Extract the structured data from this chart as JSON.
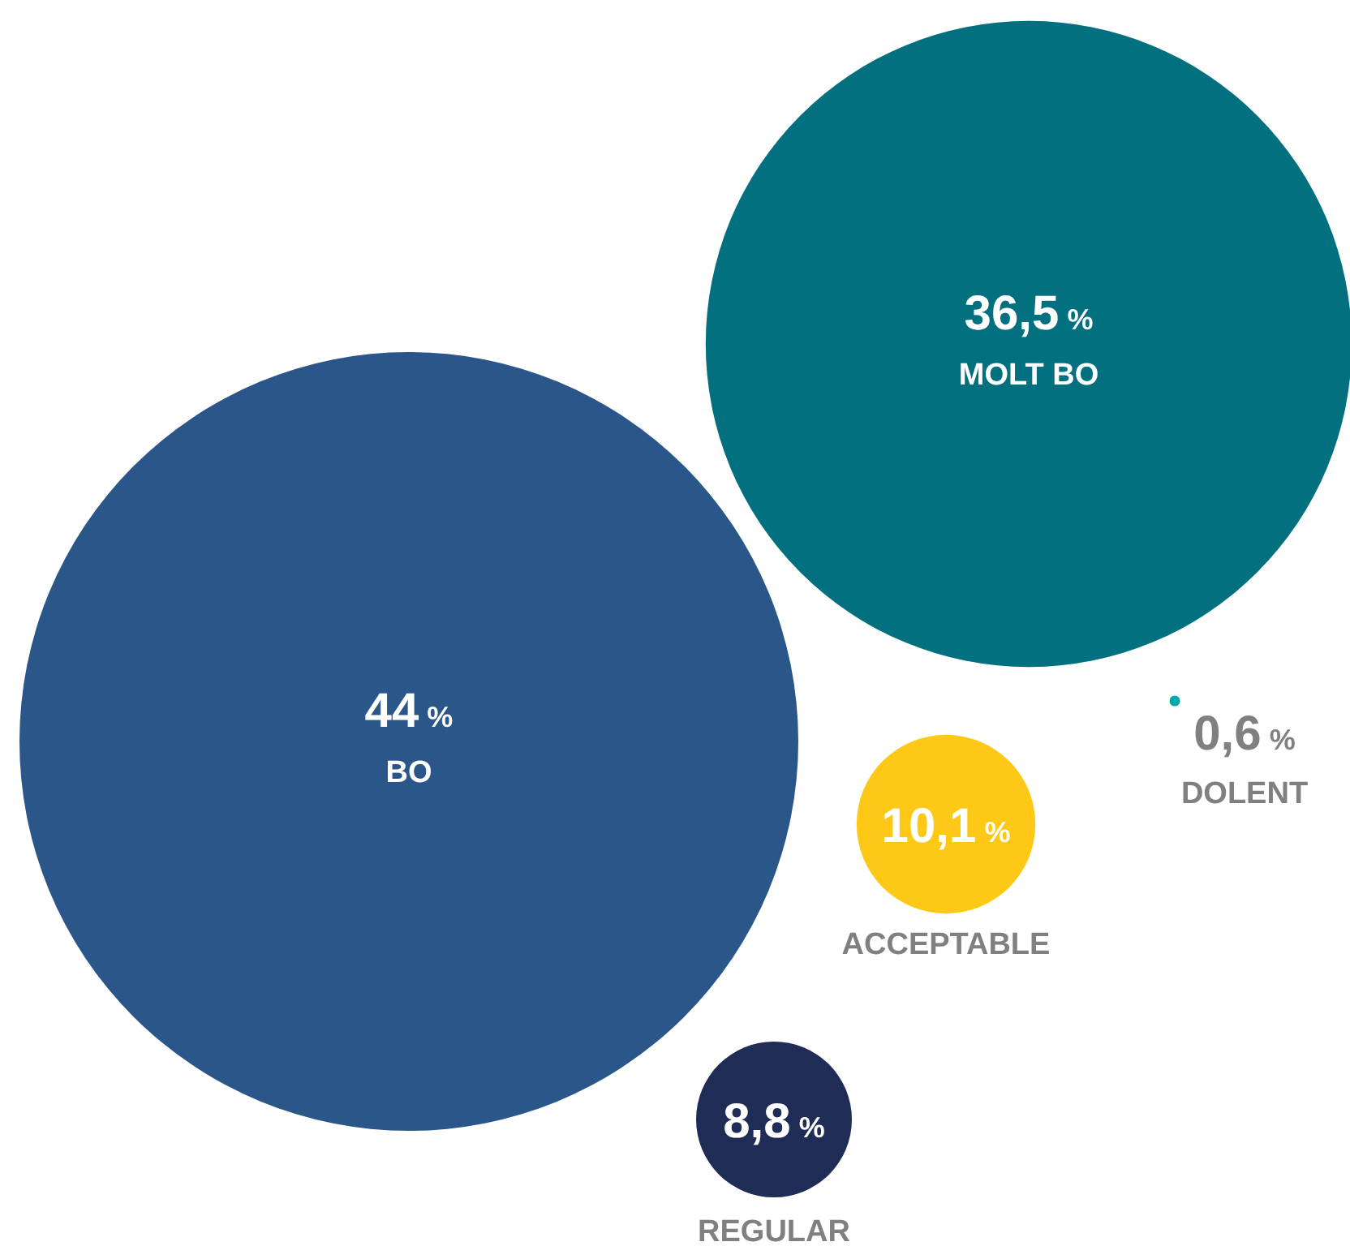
{
  "chart_data": {
    "type": "other",
    "categories": [
      "BO",
      "MOLT BO",
      "ACCEPTABLE",
      "REGULAR",
      "DOLENT"
    ],
    "values": [
      44,
      36.5,
      10.1,
      8.8,
      0.6
    ],
    "value_labels": [
      "44 %",
      "36,5 %",
      "10,1 %",
      "8,8 %",
      "0,6 %"
    ],
    "colors": [
      "#2a5689",
      "#02707f",
      "#fdc916",
      "#1f2d56",
      "#00a9a9"
    ]
  }
}
